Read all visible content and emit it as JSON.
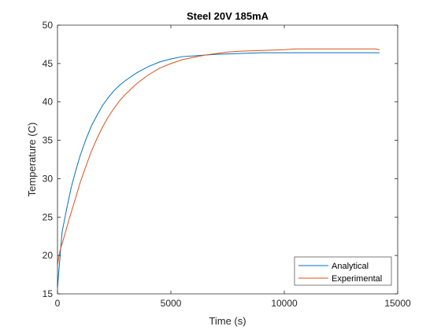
{
  "chart_data": {
    "type": "line",
    "title": "Steel 20V 185mA",
    "xlabel": "Time (s)",
    "ylabel": "Temperature (C)",
    "xlim": [
      0,
      15000
    ],
    "ylim": [
      15,
      50
    ],
    "xticks": [
      0,
      5000,
      10000,
      15000
    ],
    "xtick_labels": [
      "0",
      "5000",
      "10000",
      "15000"
    ],
    "yticks": [
      15,
      20,
      25,
      30,
      35,
      40,
      45,
      50
    ],
    "ytick_labels": [
      "15",
      "20",
      "25",
      "30",
      "35",
      "40",
      "45",
      "50"
    ],
    "grid": false,
    "legend_position": "bottom-right",
    "series": [
      {
        "name": "Analytical",
        "color": "#0072BD",
        "x": [
          0,
          200,
          400,
          600,
          800,
          1000,
          1250,
          1500,
          1750,
          2000,
          2250,
          2500,
          2750,
          3000,
          3500,
          4000,
          4500,
          5000,
          5500,
          6000,
          6500,
          7000,
          8000,
          9000,
          10000,
          11000,
          12000,
          13000,
          14200
        ],
        "y": [
          15.8,
          23.0,
          26.0,
          28.8,
          31.0,
          33.0,
          35.1,
          36.9,
          38.3,
          39.6,
          40.6,
          41.5,
          42.2,
          42.8,
          43.8,
          44.6,
          45.2,
          45.6,
          45.9,
          46.0,
          46.1,
          46.2,
          46.3,
          46.4,
          46.4,
          46.4,
          46.4,
          46.4,
          46.4
        ]
      },
      {
        "name": "Experimental",
        "color": "#D95319",
        "x": [
          0,
          100,
          300,
          500,
          750,
          1000,
          1250,
          1500,
          1750,
          2000,
          2250,
          2500,
          2750,
          3000,
          3500,
          4000,
          4500,
          5000,
          5500,
          6000,
          6500,
          7000,
          7500,
          8000,
          9000,
          10000,
          10500,
          11000,
          12000,
          13000,
          14000,
          14200
        ],
        "y": [
          18.8,
          20.5,
          22.5,
          24.6,
          27.0,
          29.5,
          31.6,
          33.6,
          35.3,
          36.8,
          38.1,
          39.2,
          40.2,
          41.0,
          42.4,
          43.5,
          44.4,
          45.0,
          45.5,
          45.8,
          46.1,
          46.3,
          46.5,
          46.6,
          46.7,
          46.8,
          46.9,
          46.9,
          46.9,
          46.9,
          46.9,
          46.8
        ]
      }
    ]
  }
}
